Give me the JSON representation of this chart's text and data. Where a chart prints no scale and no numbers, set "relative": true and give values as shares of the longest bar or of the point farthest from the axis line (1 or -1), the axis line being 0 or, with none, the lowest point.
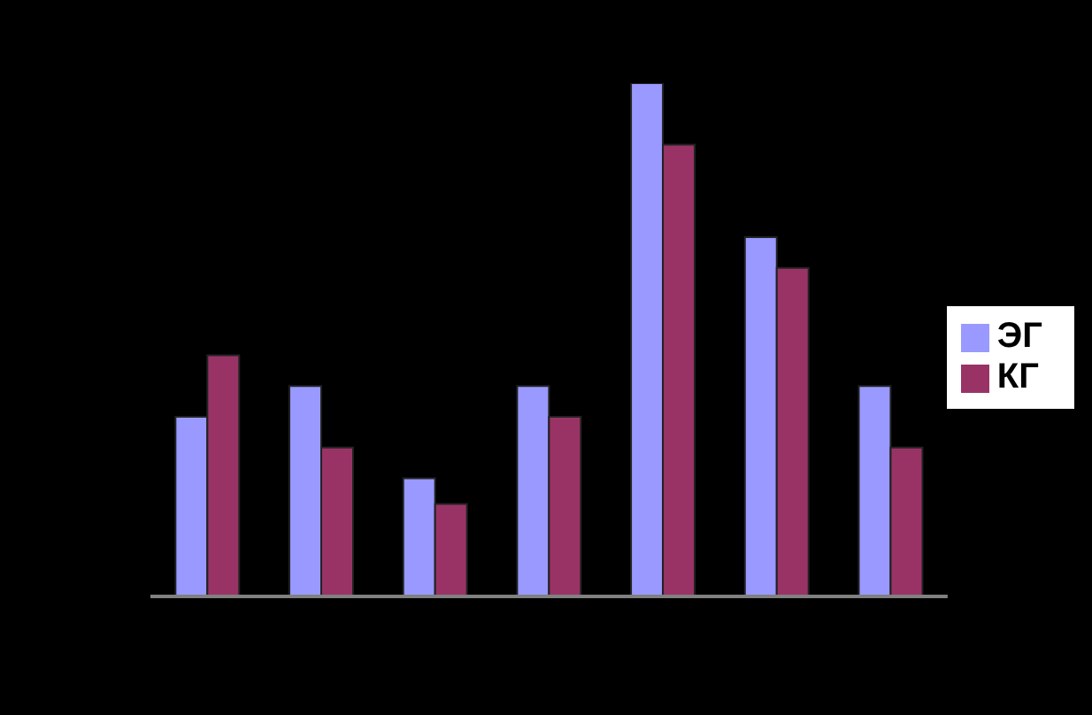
{
  "chart_data": {
    "type": "bar",
    "relative": true,
    "categories": [
      null,
      null,
      null,
      null,
      null,
      null,
      null
    ],
    "series": [
      {
        "name": "ЭГ",
        "color": "#9999ff",
        "values": [
          0.35,
          0.41,
          0.23,
          0.41,
          1,
          0.7,
          0.41
        ]
      },
      {
        "name": "КГ",
        "color": "#993366",
        "values": [
          0.47,
          0.29,
          0.18,
          0.35,
          0.88,
          0.64,
          0.29
        ]
      }
    ],
    "legend": "right",
    "grid": false
  }
}
